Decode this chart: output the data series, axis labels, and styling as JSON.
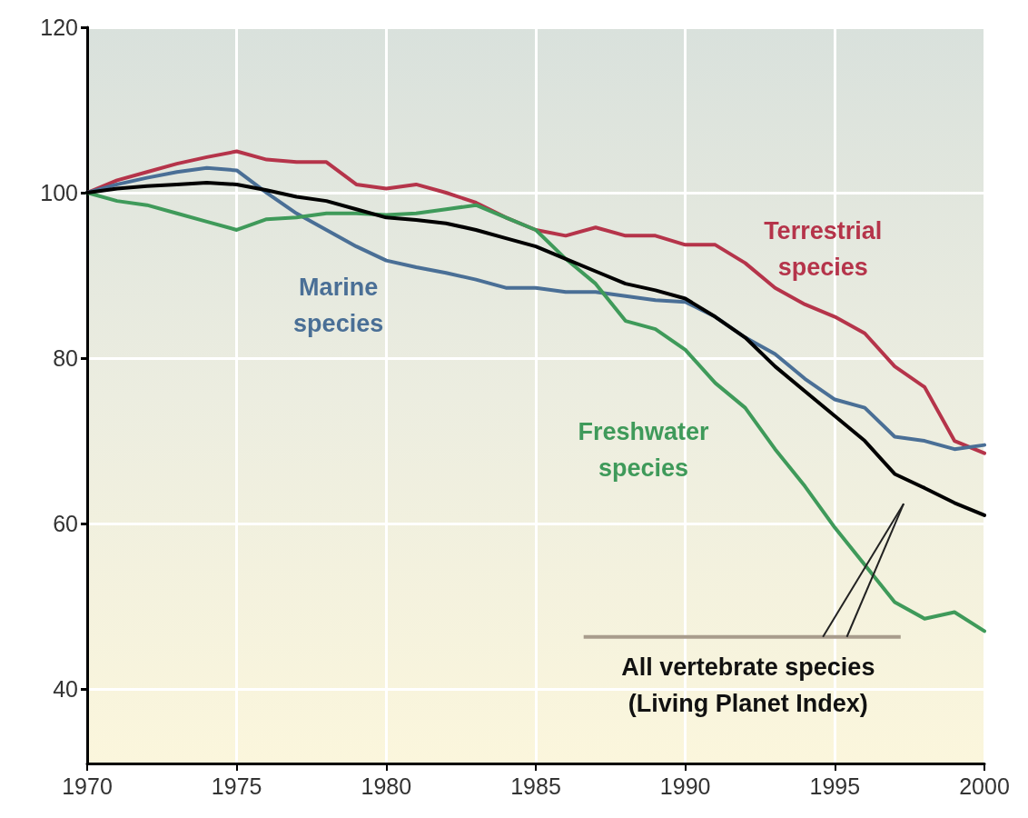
{
  "chart_data": {
    "type": "line",
    "x": [
      1970,
      1971,
      1972,
      1973,
      1974,
      1975,
      1976,
      1977,
      1978,
      1979,
      1980,
      1981,
      1982,
      1983,
      1984,
      1985,
      1986,
      1987,
      1988,
      1989,
      1990,
      1991,
      1992,
      1993,
      1994,
      1995,
      1996,
      1997,
      1998,
      1999,
      2000
    ],
    "series": [
      {
        "name": "Terrestrial\nspecies",
        "color": "#b5344a",
        "values": [
          100,
          101.5,
          102.5,
          103.5,
          104.3,
          105,
          104,
          103.7,
          103.7,
          101,
          100.5,
          101,
          100,
          98.8,
          97,
          95.5,
          94.8,
          95.8,
          94.8,
          94.8,
          93.7,
          93.7,
          91.5,
          88.5,
          86.5,
          85,
          83,
          79,
          76.5,
          70,
          68.5
        ]
      },
      {
        "name": "Marine\nspecies",
        "color": "#4a6f96",
        "values": [
          100,
          101,
          101.8,
          102.5,
          103,
          102.7,
          100,
          97.5,
          95.5,
          93.5,
          91.8,
          91,
          90.3,
          89.5,
          88.5,
          88.5,
          88,
          88,
          87.5,
          87,
          86.8,
          85,
          82.5,
          80.5,
          77.5,
          75,
          74,
          70.5,
          70,
          69,
          69.5
        ]
      },
      {
        "name": "Freshwater\nspecies",
        "color": "#3f9a5a",
        "values": [
          100,
          99,
          98.5,
          97.5,
          96.5,
          95.5,
          96.8,
          97,
          97.5,
          97.5,
          97.3,
          97.5,
          98,
          98.5,
          97,
          95.5,
          92,
          89,
          84.5,
          83.5,
          81,
          77,
          74,
          69,
          64.5,
          59.5,
          55,
          50.5,
          48.5,
          49.3,
          47
        ]
      },
      {
        "name": "All vertebrate species\n(Living Planet Index)",
        "color": "#000000",
        "values": [
          100,
          100.5,
          100.8,
          101,
          101.2,
          101,
          100.3,
          99.5,
          99,
          98,
          97,
          96.7,
          96.3,
          95.5,
          94.5,
          93.5,
          92,
          90.5,
          89,
          88.2,
          87.2,
          85,
          82.5,
          79,
          76,
          73,
          70,
          66,
          64.3,
          62.5,
          61
        ]
      }
    ],
    "xlim": [
      1970,
      2000
    ],
    "xticks": [
      1970,
      1975,
      1980,
      1985,
      1990,
      1995,
      2000
    ],
    "ylim": [
      31,
      120
    ],
    "yticks": [
      40,
      60,
      80,
      100,
      120
    ],
    "grid": true,
    "legend": false,
    "marker": "none",
    "line_style": "solid"
  }
}
